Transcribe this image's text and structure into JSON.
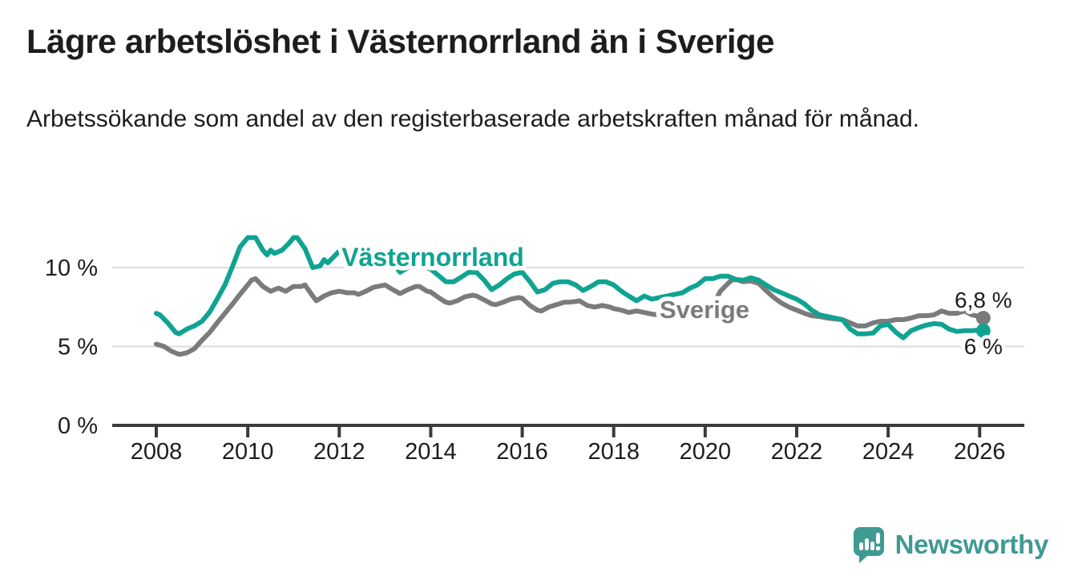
{
  "header": {
    "title": "Lägre arbetslöshet i Västernorrland än i Sverige",
    "subtitle": "Arbetssökande som andel av den registerbaserade arbetskraften månad för månad."
  },
  "logo": {
    "text": "Newsworthy",
    "icon": "speech-bubble-bar-chart",
    "color": "#3f9a93"
  },
  "colors": {
    "vasternorrland": "#10a392",
    "sverige": "#7b7b7b",
    "grid": "#dcdcdc",
    "axis": "#3b3b3b",
    "text": "#1d1d1b"
  },
  "chart_data": {
    "type": "line",
    "grid": "horizontal-only",
    "x_axis": {
      "range": [
        2007.0,
        2027.0
      ],
      "ticks": [
        2008,
        2010,
        2012,
        2014,
        2016,
        2018,
        2020,
        2022,
        2024,
        2026
      ],
      "tick_labels": [
        "2008",
        "2010",
        "2012",
        "2014",
        "2016",
        "2018",
        "2020",
        "2022",
        "2024",
        "2026"
      ]
    },
    "y_axis": {
      "range": [
        0,
        12.8
      ],
      "ticks": [
        0,
        5,
        10
      ],
      "tick_labels": [
        "0 %",
        "5 %",
        "10 %"
      ]
    },
    "series": [
      {
        "name": "Sverige",
        "color": "#7b7b7b",
        "end_value": 6.8,
        "end_label": "6,8 %",
        "points": [
          [
            2008.0,
            5.15
          ],
          [
            2008.17,
            5.0
          ],
          [
            2008.33,
            4.7
          ],
          [
            2008.5,
            4.5
          ],
          [
            2008.67,
            4.6
          ],
          [
            2008.83,
            4.85
          ],
          [
            2009.0,
            5.4
          ],
          [
            2009.17,
            5.9
          ],
          [
            2009.33,
            6.5
          ],
          [
            2009.5,
            7.1
          ],
          [
            2009.67,
            7.7
          ],
          [
            2009.83,
            8.3
          ],
          [
            2010.0,
            8.9
          ],
          [
            2010.08,
            9.2
          ],
          [
            2010.17,
            9.3
          ],
          [
            2010.33,
            8.8
          ],
          [
            2010.5,
            8.5
          ],
          [
            2010.67,
            8.7
          ],
          [
            2010.83,
            8.5
          ],
          [
            2011.0,
            8.8
          ],
          [
            2011.17,
            8.8
          ],
          [
            2011.25,
            8.9
          ],
          [
            2011.42,
            8.2
          ],
          [
            2011.5,
            7.9
          ],
          [
            2011.67,
            8.2
          ],
          [
            2011.83,
            8.4
          ],
          [
            2012.0,
            8.5
          ],
          [
            2012.17,
            8.4
          ],
          [
            2012.33,
            8.4
          ],
          [
            2012.42,
            8.3
          ],
          [
            2012.58,
            8.5
          ],
          [
            2012.75,
            8.75
          ],
          [
            2012.92,
            8.85
          ],
          [
            2013.0,
            8.9
          ],
          [
            2013.17,
            8.6
          ],
          [
            2013.33,
            8.35
          ],
          [
            2013.5,
            8.6
          ],
          [
            2013.67,
            8.8
          ],
          [
            2013.75,
            8.8
          ],
          [
            2013.92,
            8.5
          ],
          [
            2014.0,
            8.45
          ],
          [
            2014.17,
            8.1
          ],
          [
            2014.33,
            7.8
          ],
          [
            2014.42,
            7.75
          ],
          [
            2014.58,
            7.9
          ],
          [
            2014.75,
            8.15
          ],
          [
            2014.92,
            8.25
          ],
          [
            2015.0,
            8.2
          ],
          [
            2015.17,
            7.95
          ],
          [
            2015.33,
            7.7
          ],
          [
            2015.42,
            7.65
          ],
          [
            2015.58,
            7.8
          ],
          [
            2015.75,
            8.0
          ],
          [
            2015.92,
            8.1
          ],
          [
            2016.0,
            8.05
          ],
          [
            2016.17,
            7.6
          ],
          [
            2016.33,
            7.3
          ],
          [
            2016.42,
            7.25
          ],
          [
            2016.58,
            7.5
          ],
          [
            2016.75,
            7.65
          ],
          [
            2016.92,
            7.8
          ],
          [
            2017.0,
            7.8
          ],
          [
            2017.17,
            7.85
          ],
          [
            2017.25,
            7.9
          ],
          [
            2017.42,
            7.6
          ],
          [
            2017.58,
            7.5
          ],
          [
            2017.75,
            7.6
          ],
          [
            2017.92,
            7.5
          ],
          [
            2018.0,
            7.4
          ],
          [
            2018.17,
            7.3
          ],
          [
            2018.33,
            7.15
          ],
          [
            2018.5,
            7.25
          ],
          [
            2018.67,
            7.15
          ],
          [
            2018.83,
            7.05
          ],
          [
            2019.0,
            7.0
          ],
          [
            2019.17,
            6.9
          ],
          [
            2019.33,
            6.95
          ],
          [
            2019.5,
            7.0
          ],
          [
            2019.67,
            7.0
          ],
          [
            2019.83,
            7.05
          ],
          [
            2020.0,
            7.2
          ],
          [
            2020.17,
            7.6
          ],
          [
            2020.33,
            8.5
          ],
          [
            2020.5,
            9.0
          ],
          [
            2020.58,
            9.2
          ],
          [
            2020.67,
            9.25
          ],
          [
            2020.83,
            9.1
          ],
          [
            2021.0,
            9.15
          ],
          [
            2021.17,
            9.0
          ],
          [
            2021.33,
            8.55
          ],
          [
            2021.5,
            8.1
          ],
          [
            2021.67,
            7.75
          ],
          [
            2021.83,
            7.5
          ],
          [
            2022.0,
            7.3
          ],
          [
            2022.17,
            7.1
          ],
          [
            2022.33,
            6.95
          ],
          [
            2022.5,
            6.9
          ],
          [
            2022.67,
            6.8
          ],
          [
            2022.83,
            6.75
          ],
          [
            2023.0,
            6.7
          ],
          [
            2023.17,
            6.5
          ],
          [
            2023.33,
            6.3
          ],
          [
            2023.5,
            6.3
          ],
          [
            2023.67,
            6.5
          ],
          [
            2023.83,
            6.6
          ],
          [
            2024.0,
            6.6
          ],
          [
            2024.17,
            6.7
          ],
          [
            2024.33,
            6.7
          ],
          [
            2024.5,
            6.8
          ],
          [
            2024.67,
            6.95
          ],
          [
            2024.83,
            6.95
          ],
          [
            2025.0,
            7.0
          ],
          [
            2025.17,
            7.25
          ],
          [
            2025.33,
            7.1
          ],
          [
            2025.5,
            7.1
          ],
          [
            2025.67,
            7.25
          ],
          [
            2025.83,
            7.0
          ],
          [
            2026.0,
            6.9
          ],
          [
            2026.08,
            6.8
          ]
        ]
      },
      {
        "name": "Västernorrland",
        "color": "#10a392",
        "end_value": 6.0,
        "end_label": "6 %",
        "points": [
          [
            2008.0,
            7.1
          ],
          [
            2008.08,
            7.0
          ],
          [
            2008.25,
            6.5
          ],
          [
            2008.42,
            5.9
          ],
          [
            2008.5,
            5.8
          ],
          [
            2008.67,
            6.1
          ],
          [
            2008.83,
            6.3
          ],
          [
            2009.0,
            6.6
          ],
          [
            2009.17,
            7.2
          ],
          [
            2009.33,
            8.0
          ],
          [
            2009.5,
            8.9
          ],
          [
            2009.67,
            10.1
          ],
          [
            2009.83,
            11.3
          ],
          [
            2010.0,
            11.9
          ],
          [
            2010.17,
            11.9
          ],
          [
            2010.33,
            11.1
          ],
          [
            2010.42,
            10.8
          ],
          [
            2010.5,
            11.1
          ],
          [
            2010.58,
            10.9
          ],
          [
            2010.75,
            11.1
          ],
          [
            2010.92,
            11.6
          ],
          [
            2011.0,
            11.9
          ],
          [
            2011.08,
            11.9
          ],
          [
            2011.25,
            11.2
          ],
          [
            2011.42,
            10.0
          ],
          [
            2011.58,
            10.1
          ],
          [
            2011.67,
            10.5
          ],
          [
            2011.75,
            10.3
          ],
          [
            2011.92,
            10.8
          ],
          [
            2012.08,
            11.3
          ],
          [
            2012.25,
            10.7
          ],
          [
            2012.42,
            10.3
          ],
          [
            2012.58,
            10.7
          ],
          [
            2012.75,
            10.9
          ],
          [
            2012.92,
            10.9
          ],
          [
            2013.0,
            11.0
          ],
          [
            2013.17,
            10.3
          ],
          [
            2013.33,
            9.7
          ],
          [
            2013.5,
            10.0
          ],
          [
            2013.67,
            10.3
          ],
          [
            2013.83,
            10.1
          ],
          [
            2014.0,
            9.9
          ],
          [
            2014.17,
            9.5
          ],
          [
            2014.33,
            9.1
          ],
          [
            2014.5,
            9.1
          ],
          [
            2014.67,
            9.4
          ],
          [
            2014.83,
            9.7
          ],
          [
            2015.0,
            9.7
          ],
          [
            2015.17,
            9.2
          ],
          [
            2015.33,
            8.6
          ],
          [
            2015.5,
            8.9
          ],
          [
            2015.67,
            9.3
          ],
          [
            2015.83,
            9.6
          ],
          [
            2016.0,
            9.7
          ],
          [
            2016.17,
            9.1
          ],
          [
            2016.33,
            8.45
          ],
          [
            2016.5,
            8.6
          ],
          [
            2016.67,
            9.0
          ],
          [
            2016.83,
            9.1
          ],
          [
            2017.0,
            9.1
          ],
          [
            2017.17,
            8.9
          ],
          [
            2017.33,
            8.55
          ],
          [
            2017.5,
            8.8
          ],
          [
            2017.67,
            9.1
          ],
          [
            2017.83,
            9.1
          ],
          [
            2018.0,
            8.9
          ],
          [
            2018.17,
            8.5
          ],
          [
            2018.33,
            8.2
          ],
          [
            2018.5,
            7.9
          ],
          [
            2018.67,
            8.2
          ],
          [
            2018.83,
            8.0
          ],
          [
            2019.0,
            8.1
          ],
          [
            2019.17,
            8.2
          ],
          [
            2019.33,
            8.3
          ],
          [
            2019.5,
            8.4
          ],
          [
            2019.67,
            8.7
          ],
          [
            2019.83,
            8.9
          ],
          [
            2020.0,
            9.3
          ],
          [
            2020.17,
            9.3
          ],
          [
            2020.33,
            9.45
          ],
          [
            2020.5,
            9.45
          ],
          [
            2020.67,
            9.25
          ],
          [
            2020.83,
            9.2
          ],
          [
            2021.0,
            9.35
          ],
          [
            2021.17,
            9.2
          ],
          [
            2021.33,
            8.9
          ],
          [
            2021.5,
            8.6
          ],
          [
            2021.67,
            8.4
          ],
          [
            2021.83,
            8.2
          ],
          [
            2022.0,
            8.0
          ],
          [
            2022.17,
            7.7
          ],
          [
            2022.33,
            7.3
          ],
          [
            2022.5,
            7.0
          ],
          [
            2022.67,
            6.9
          ],
          [
            2022.83,
            6.8
          ],
          [
            2023.0,
            6.7
          ],
          [
            2023.17,
            6.1
          ],
          [
            2023.33,
            5.8
          ],
          [
            2023.5,
            5.8
          ],
          [
            2023.67,
            5.85
          ],
          [
            2023.83,
            6.3
          ],
          [
            2024.0,
            6.4
          ],
          [
            2024.17,
            5.9
          ],
          [
            2024.33,
            5.55
          ],
          [
            2024.5,
            6.0
          ],
          [
            2024.67,
            6.2
          ],
          [
            2024.83,
            6.35
          ],
          [
            2025.0,
            6.45
          ],
          [
            2025.17,
            6.4
          ],
          [
            2025.33,
            6.1
          ],
          [
            2025.5,
            5.95
          ],
          [
            2025.67,
            6.0
          ],
          [
            2025.83,
            6.0
          ],
          [
            2026.0,
            6.05
          ],
          [
            2026.08,
            6.0
          ]
        ]
      }
    ]
  }
}
